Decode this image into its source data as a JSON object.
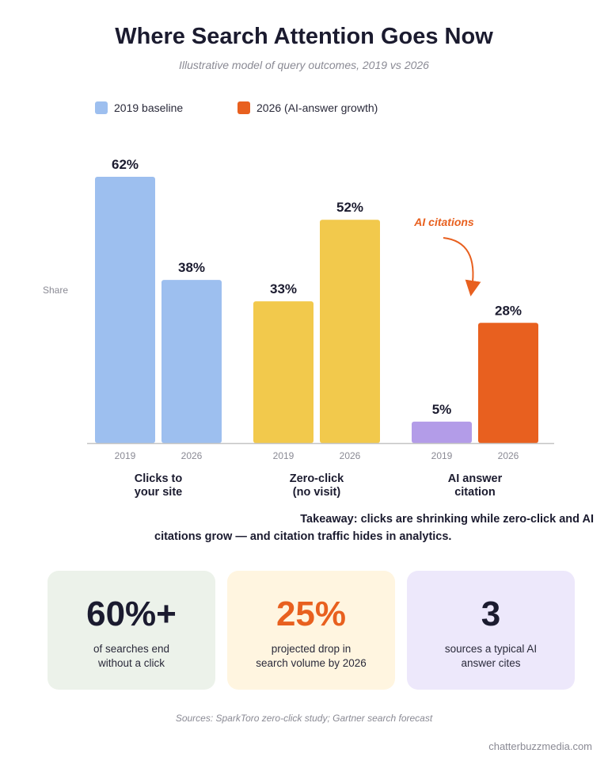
{
  "title": "Where Search Attention Goes Now",
  "subtitle": "Illustrative model of query outcomes, 2019 vs 2026",
  "legend": [
    {
      "label": "2019 baseline",
      "color": "#9dbfef"
    },
    {
      "label": "2026 (AI-answer growth)",
      "color": "#e8601f"
    }
  ],
  "chart_data": {
    "type": "bar",
    "ylabel": "Share",
    "ylim": [
      0,
      62
    ],
    "grid": false,
    "legend_position": "top-left",
    "groups": [
      {
        "label": "Clicks to\nyour site",
        "bars": [
          {
            "x": "2019",
            "value": 62,
            "value_label": "62%",
            "color": "#9dbfef"
          },
          {
            "x": "2026",
            "value": 38,
            "value_label": "38%",
            "color": "#9dbfef"
          }
        ]
      },
      {
        "label": "Zero-click\n(no visit)",
        "bars": [
          {
            "x": "2019",
            "value": 33,
            "value_label": "33%",
            "color": "#f2c94c"
          },
          {
            "x": "2026",
            "value": 52,
            "value_label": "52%",
            "color": "#f2c94c"
          }
        ]
      },
      {
        "label": "AI answer\ncitation",
        "bars": [
          {
            "x": "2019",
            "value": 5,
            "value_label": "5%",
            "color": "#b39ce8"
          },
          {
            "x": "2026",
            "value": 28,
            "value_label": "28%",
            "color": "#e8601f"
          }
        ]
      }
    ],
    "annotation": {
      "text": "AI citations",
      "target": "AI answer citation 2026",
      "color": "#e8601f"
    }
  },
  "takeaway_lines": [
    "Takeaway: clicks are shrinking while zero-click and AI",
    "citations grow — and citation traffic hides in analytics."
  ],
  "stats": [
    {
      "value": "60%+",
      "desc": "of searches end\nwithout a click",
      "bg": "#ecf2ea",
      "value_color": "#1b1b2f"
    },
    {
      "value": "25%",
      "desc": "projected drop in\nsearch volume by 2026",
      "bg": "#fff5e0",
      "value_color": "#e8601f"
    },
    {
      "value": "3",
      "desc": "sources a typical AI\nanswer cites",
      "bg": "#ede8fb",
      "value_color": "#1b1b2f"
    }
  ],
  "sources": "Sources: SparkToro zero-click study; Gartner search forecast",
  "footer": "chatterbuzzmedia.com"
}
